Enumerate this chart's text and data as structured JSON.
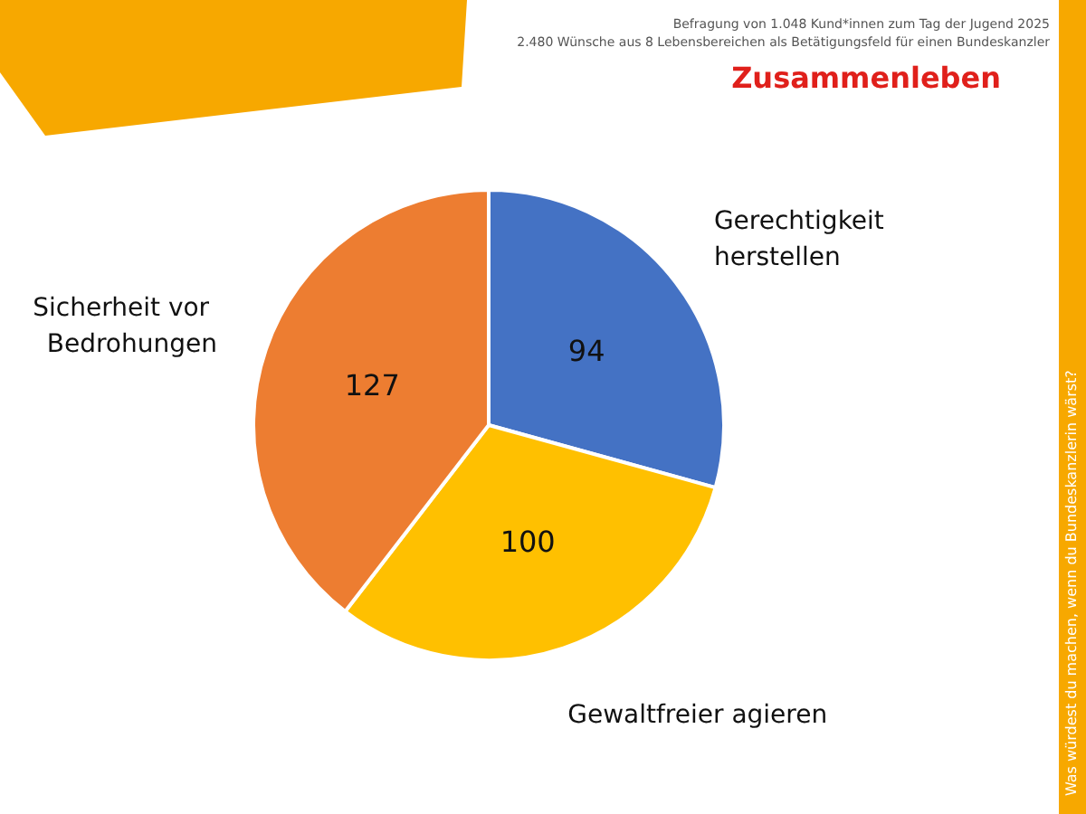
{
  "chart_data": {
    "type": "pie",
    "title": "Zusammenleben",
    "annotations": [
      "Befragung von 1.048 Kund*innen zum Tag der Jugend 2025",
      "2.480 Wünsche aus 8 Lebensbereichen als Betätigungsfeld für einen Bundeskanzler",
      "Was würdest du machen, wenn du Bundeskanzlerin wärst?"
    ],
    "categories": [
      "Gerechtigkeit herstellen",
      "Gewaltfreier agieren",
      "Sicherheit vor Bedrohungen"
    ],
    "values": [
      94,
      100,
      127
    ],
    "colors": [
      "#4472c4",
      "#ffc000",
      "#ed7d31"
    ],
    "data_labels": true,
    "legend": false
  }
}
